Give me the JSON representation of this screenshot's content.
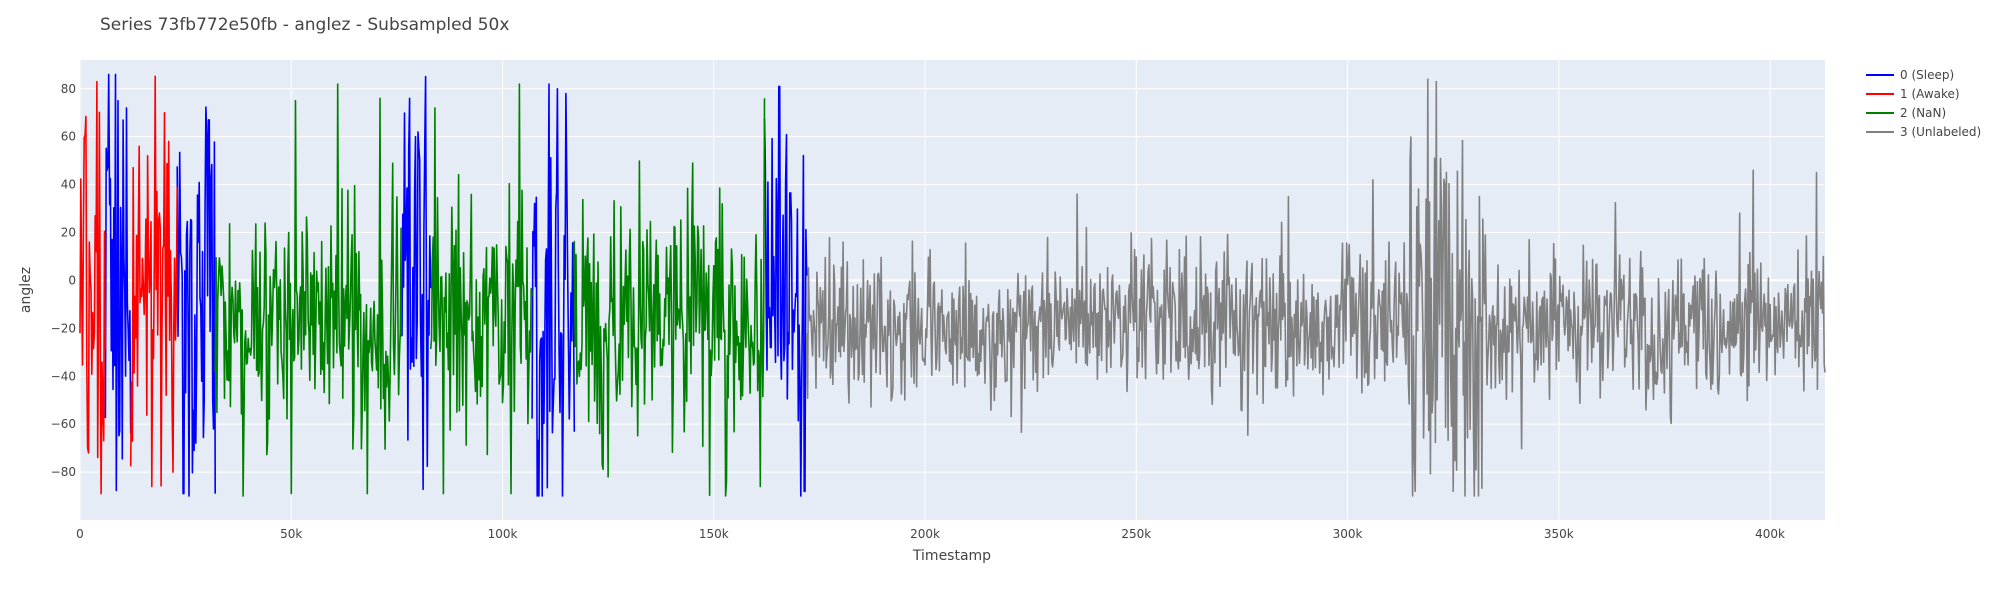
{
  "chart_data": {
    "type": "line",
    "title": "Series 73fb772e50fb - anglez - Subsampled 50x",
    "xlabel": "Timestamp",
    "ylabel": "anglez",
    "xlim": [
      0,
      413000
    ],
    "ylim": [
      -100,
      92
    ],
    "xticks": [
      {
        "value": 0,
        "label": "0"
      },
      {
        "value": 50000,
        "label": "50k"
      },
      {
        "value": 100000,
        "label": "100k"
      },
      {
        "value": 150000,
        "label": "150k"
      },
      {
        "value": 200000,
        "label": "200k"
      },
      {
        "value": 250000,
        "label": "250k"
      },
      {
        "value": 300000,
        "label": "300k"
      },
      {
        "value": 350000,
        "label": "350k"
      },
      {
        "value": 400000,
        "label": "400k"
      }
    ],
    "yticks": [
      {
        "value": 80,
        "label": "80"
      },
      {
        "value": 60,
        "label": "60"
      },
      {
        "value": 40,
        "label": "40"
      },
      {
        "value": 20,
        "label": "20"
      },
      {
        "value": 0,
        "label": "0"
      },
      {
        "value": -20,
        "label": "−20"
      },
      {
        "value": -40,
        "label": "−40"
      },
      {
        "value": -60,
        "label": "−60"
      },
      {
        "value": -80,
        "label": "−80"
      }
    ],
    "grid": true,
    "legend_position": "top-right",
    "series": [
      {
        "name": "0 (Sleep)",
        "color": "#0000ff",
        "segments": [
          [
            6000,
            12000
          ],
          [
            23000,
            32000
          ],
          [
            76000,
            83000
          ],
          [
            107000,
            117000
          ],
          [
            162000,
            172000
          ]
        ],
        "points": [
          [
            9000,
            75
          ],
          [
            11000,
            72
          ],
          [
            24500,
            -89
          ],
          [
            30500,
            67
          ],
          [
            32000,
            -89
          ],
          [
            78000,
            76
          ],
          [
            80000,
            62
          ],
          [
            111000,
            82
          ],
          [
            113000,
            80
          ],
          [
            115000,
            78
          ],
          [
            163500,
            -28
          ],
          [
            165500,
            81
          ],
          [
            171500,
            -88
          ]
        ]
      },
      {
        "name": "1 (Awake)",
        "color": "#ff0000",
        "segments": [
          [
            0,
            6000
          ],
          [
            12000,
            23000
          ]
        ],
        "points": [
          [
            2000,
            -72
          ],
          [
            4000,
            83
          ],
          [
            5000,
            -89
          ],
          [
            14000,
            56
          ],
          [
            17000,
            -86
          ],
          [
            20000,
            70
          ],
          [
            22000,
            -80
          ]
        ]
      },
      {
        "name": "2 (NaN)",
        "color": "#008000",
        "segments": [
          [
            32000,
            76000
          ],
          [
            83000,
            107000
          ],
          [
            117000,
            162000
          ]
        ],
        "points": [
          [
            51000,
            75
          ],
          [
            50000,
            -89
          ],
          [
            61000,
            82
          ],
          [
            68000,
            -89
          ],
          [
            71000,
            76
          ],
          [
            84000,
            72
          ],
          [
            86000,
            -89
          ],
          [
            104000,
            82
          ],
          [
            108000,
            82
          ],
          [
            102000,
            -89
          ],
          [
            125000,
            -82
          ],
          [
            145000,
            49
          ],
          [
            162000,
            76
          ],
          [
            161000,
            -86
          ]
        ]
      },
      {
        "name": "3 (Unlabeled)",
        "color": "#808080",
        "segments": [
          [
            172000,
            413000
          ]
        ],
        "points": [
          [
            236000,
            36
          ],
          [
            286000,
            35
          ],
          [
            306000,
            42
          ],
          [
            316000,
            -88
          ],
          [
            319000,
            84
          ],
          [
            321000,
            83
          ],
          [
            325000,
            -88
          ],
          [
            331000,
            -90
          ],
          [
            396000,
            46
          ],
          [
            411000,
            45
          ]
        ]
      }
    ]
  }
}
